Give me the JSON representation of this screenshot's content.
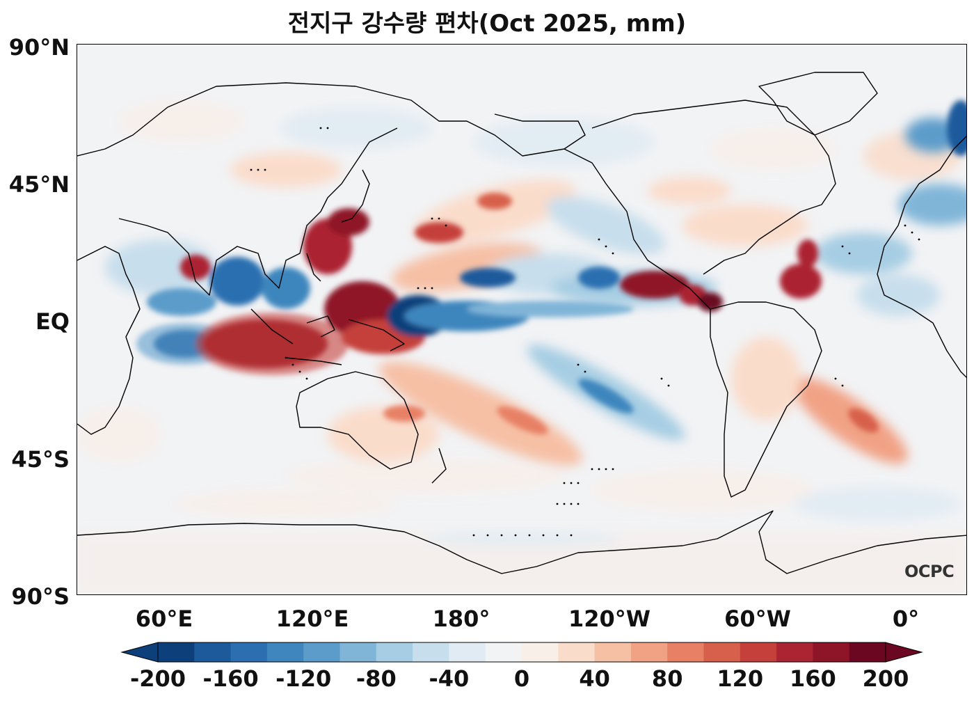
{
  "title": "전지구 강수량 편차(Oct 2025, mm)",
  "credit": "OCPC",
  "map": {
    "projection": "equirectangular",
    "central_longitude": "180°",
    "extent": {
      "lon": [
        "37°E",
        "37°E"
      ],
      "lat": [
        "90°S",
        "90°N"
      ]
    },
    "coastlines": true,
    "stippling": "significant areas shown with black dots",
    "lat_ticks": [
      "90°N",
      "45°N",
      "EQ",
      "45°S",
      "90°S"
    ],
    "lon_ticks": [
      "60°E",
      "120°E",
      "180°",
      "120°W",
      "60°W",
      "0°"
    ]
  },
  "colorbar": {
    "colormap": "RdBu_r (reversed: blue = negative, red = positive)",
    "extend": "both",
    "levels_min": -200,
    "levels_max": 200,
    "step": 20,
    "tick_labels": [
      "-200",
      "-160",
      "-120",
      "-80",
      "-40",
      "0",
      "40",
      "80",
      "120",
      "160",
      "200"
    ],
    "colors": [
      "#0d3f7a",
      "#1c5a9c",
      "#2c6fb0",
      "#3e86bd",
      "#5b9ccb",
      "#80b5d8",
      "#a6cde3",
      "#c7deec",
      "#e0ebf3",
      "#f2f3f5",
      "#f8efe9",
      "#fadcca",
      "#f6c0a5",
      "#f1a285",
      "#e78065",
      "#d7604c",
      "#c53f3b",
      "#ab2431",
      "#8e1428",
      "#6b0720"
    ]
  },
  "anomaly_regions": [
    {
      "name": "Eastern Indian Ocean / Sumatra",
      "sign": "positive",
      "magnitude": "very high"
    },
    {
      "name": "Western tropical Pacific / Philippine Sea",
      "sign": "positive",
      "magnitude": "very high"
    },
    {
      "name": "Central equatorial Pacific",
      "sign": "negative",
      "magnitude": "high"
    },
    {
      "name": "Western equatorial Indian Ocean",
      "sign": "negative",
      "magnitude": "high"
    },
    {
      "name": "Central America / Eastern Pacific ITCZ",
      "sign": "positive",
      "magnitude": "very high"
    },
    {
      "name": "Tropical North Atlantic",
      "sign": "positive",
      "magnitude": "high"
    },
    {
      "name": "South Pacific Convergence Zone",
      "sign": "positive",
      "magnitude": "moderate"
    },
    {
      "name": "Southeast Pacific diagonal band",
      "sign": "negative",
      "magnitude": "moderate"
    }
  ]
}
